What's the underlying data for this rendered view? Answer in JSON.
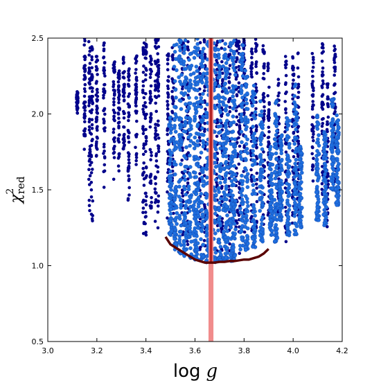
{
  "chart_data": {
    "type": "scatter",
    "title": "",
    "xlabel": {
      "main": "log",
      "var": "g"
    },
    "ylabel": {
      "main": "χ",
      "sub": "red",
      "sup": "2"
    },
    "xlim": [
      3.0,
      4.2
    ],
    "ylim": [
      0.5,
      2.5
    ],
    "x_ticks": [
      "3.0",
      "3.2",
      "3.4",
      "3.6",
      "3.8",
      "4.0",
      "4.2"
    ],
    "y_ticks": [
      "0.5",
      "1.0",
      "1.5",
      "2.0",
      "2.5"
    ],
    "grid": false,
    "legend": "none",
    "colors": {
      "dark_points": "#00008b",
      "light_points": "#1f6fe0",
      "light_points_edge": "#1146a8",
      "curve": "#5a0000",
      "band_light": "#f08080",
      "band_dark": "#b22222"
    },
    "vertical_band": {
      "x_range": [
        3.655,
        3.675
      ],
      "dark_core_x_range": [
        3.66,
        3.67
      ],
      "dark_core_y_range": [
        1.02,
        2.5
      ]
    },
    "minimum_envelope_curve": {
      "x": [
        3.48,
        3.5,
        3.52,
        3.54,
        3.56,
        3.58,
        3.6,
        3.62,
        3.64,
        3.66,
        3.68,
        3.7,
        3.72,
        3.74,
        3.76,
        3.78,
        3.8,
        3.82,
        3.84,
        3.86,
        3.88,
        3.9
      ],
      "y": [
        1.19,
        1.14,
        1.12,
        1.1,
        1.08,
        1.06,
        1.04,
        1.03,
        1.02,
        1.02,
        1.02,
        1.025,
        1.025,
        1.03,
        1.03,
        1.035,
        1.04,
        1.04,
        1.05,
        1.06,
        1.08,
        1.11
      ]
    },
    "point_columns": {
      "dark": [
        {
          "x": 3.12,
          "y": [
            2.0,
            2.15
          ]
        },
        {
          "x": 3.15,
          "y": [
            1.75,
            2.5
          ]
        },
        {
          "x": 3.17,
          "y": [
            1.3,
            2.5
          ]
        },
        {
          "x": 3.18,
          "y": [
            1.23,
            2.45
          ]
        },
        {
          "x": 3.2,
          "y": [
            1.7,
            2.4
          ]
        },
        {
          "x": 3.23,
          "y": [
            1.5,
            2.5
          ]
        },
        {
          "x": 3.27,
          "y": [
            1.55,
            2.35
          ]
        },
        {
          "x": 3.29,
          "y": [
            1.62,
            2.3
          ]
        },
        {
          "x": 3.31,
          "y": [
            1.75,
            2.42
          ]
        },
        {
          "x": 3.33,
          "y": [
            1.4,
            2.3
          ]
        },
        {
          "x": 3.36,
          "y": [
            1.65,
            2.4
          ]
        },
        {
          "x": 3.39,
          "y": [
            1.2,
            2.5
          ]
        },
        {
          "x": 3.4,
          "y": [
            1.14,
            2.5
          ]
        },
        {
          "x": 3.42,
          "y": [
            1.3,
            2.45
          ]
        },
        {
          "x": 3.44,
          "y": [
            1.25,
            2.5
          ]
        },
        {
          "x": 3.45,
          "y": [
            1.2,
            2.5
          ]
        },
        {
          "x": 3.49,
          "y": [
            1.3,
            2.4
          ]
        },
        {
          "x": 3.51,
          "y": [
            1.1,
            2.5
          ]
        },
        {
          "x": 3.55,
          "y": [
            1.12,
            2.5
          ]
        },
        {
          "x": 3.57,
          "y": [
            1.1,
            2.5
          ]
        },
        {
          "x": 3.62,
          "y": [
            1.05,
            2.5
          ]
        },
        {
          "x": 3.64,
          "y": [
            1.05,
            2.5
          ]
        },
        {
          "x": 3.69,
          "y": [
            1.05,
            2.5
          ]
        },
        {
          "x": 3.71,
          "y": [
            1.1,
            2.5
          ]
        },
        {
          "x": 3.74,
          "y": [
            1.05,
            2.5
          ]
        },
        {
          "x": 3.77,
          "y": [
            1.1,
            2.5
          ]
        },
        {
          "x": 3.78,
          "y": [
            1.05,
            2.5
          ]
        },
        {
          "x": 3.8,
          "y": [
            1.15,
            2.5
          ]
        },
        {
          "x": 3.83,
          "y": [
            1.15,
            2.45
          ]
        },
        {
          "x": 3.85,
          "y": [
            1.2,
            2.5
          ]
        },
        {
          "x": 3.88,
          "y": [
            1.25,
            2.45
          ]
        },
        {
          "x": 3.9,
          "y": [
            1.3,
            2.35
          ]
        },
        {
          "x": 3.94,
          "y": [
            1.2,
            2.25
          ]
        },
        {
          "x": 3.97,
          "y": [
            1.15,
            2.4
          ]
        },
        {
          "x": 4.0,
          "y": [
            1.15,
            2.4
          ]
        },
        {
          "x": 4.02,
          "y": [
            1.25,
            2.45
          ]
        },
        {
          "x": 4.08,
          "y": [
            1.55,
            2.4
          ]
        },
        {
          "x": 4.12,
          "y": [
            1.3,
            2.5
          ]
        },
        {
          "x": 4.14,
          "y": [
            1.25,
            2.2
          ]
        },
        {
          "x": 4.17,
          "y": [
            1.45,
            2.45
          ]
        }
      ],
      "light": [
        {
          "x": 3.5,
          "y": [
            1.2,
            2.0
          ]
        },
        {
          "x": 3.52,
          "y": [
            1.1,
            2.5
          ]
        },
        {
          "x": 3.54,
          "y": [
            1.08,
            2.5
          ]
        },
        {
          "x": 3.56,
          "y": [
            1.06,
            2.5
          ]
        },
        {
          "x": 3.58,
          "y": [
            1.05,
            2.4
          ]
        },
        {
          "x": 3.6,
          "y": [
            1.04,
            2.5
          ]
        },
        {
          "x": 3.61,
          "y": [
            1.04,
            2.5
          ]
        },
        {
          "x": 3.63,
          "y": [
            1.03,
            2.5
          ]
        },
        {
          "x": 3.65,
          "y": [
            1.02,
            2.5
          ]
        },
        {
          "x": 3.68,
          "y": [
            1.02,
            2.5
          ]
        },
        {
          "x": 3.7,
          "y": [
            1.03,
            2.5
          ]
        },
        {
          "x": 3.72,
          "y": [
            1.03,
            2.5
          ]
        },
        {
          "x": 3.73,
          "y": [
            1.03,
            2.4
          ]
        },
        {
          "x": 3.75,
          "y": [
            1.03,
            2.5
          ]
        },
        {
          "x": 3.76,
          "y": [
            1.04,
            2.5
          ]
        },
        {
          "x": 3.79,
          "y": [
            1.05,
            2.5
          ]
        },
        {
          "x": 3.81,
          "y": [
            1.1,
            2.3
          ]
        },
        {
          "x": 3.84,
          "y": [
            1.12,
            2.2
          ]
        },
        {
          "x": 3.87,
          "y": [
            1.15,
            2.1
          ]
        },
        {
          "x": 3.91,
          "y": [
            1.2,
            1.8
          ]
        },
        {
          "x": 3.93,
          "y": [
            1.15,
            2.1
          ]
        },
        {
          "x": 3.95,
          "y": [
            1.3,
            1.9
          ]
        },
        {
          "x": 3.98,
          "y": [
            1.2,
            2.0
          ]
        },
        {
          "x": 4.01,
          "y": [
            1.2,
            2.2
          ]
        },
        {
          "x": 4.03,
          "y": [
            1.25,
            1.8
          ]
        },
        {
          "x": 4.1,
          "y": [
            1.3,
            2.0
          ]
        },
        {
          "x": 4.13,
          "y": [
            1.25,
            1.9
          ]
        },
        {
          "x": 4.16,
          "y": [
            1.5,
            2.1
          ]
        },
        {
          "x": 4.18,
          "y": [
            1.4,
            2.0
          ]
        }
      ]
    }
  }
}
